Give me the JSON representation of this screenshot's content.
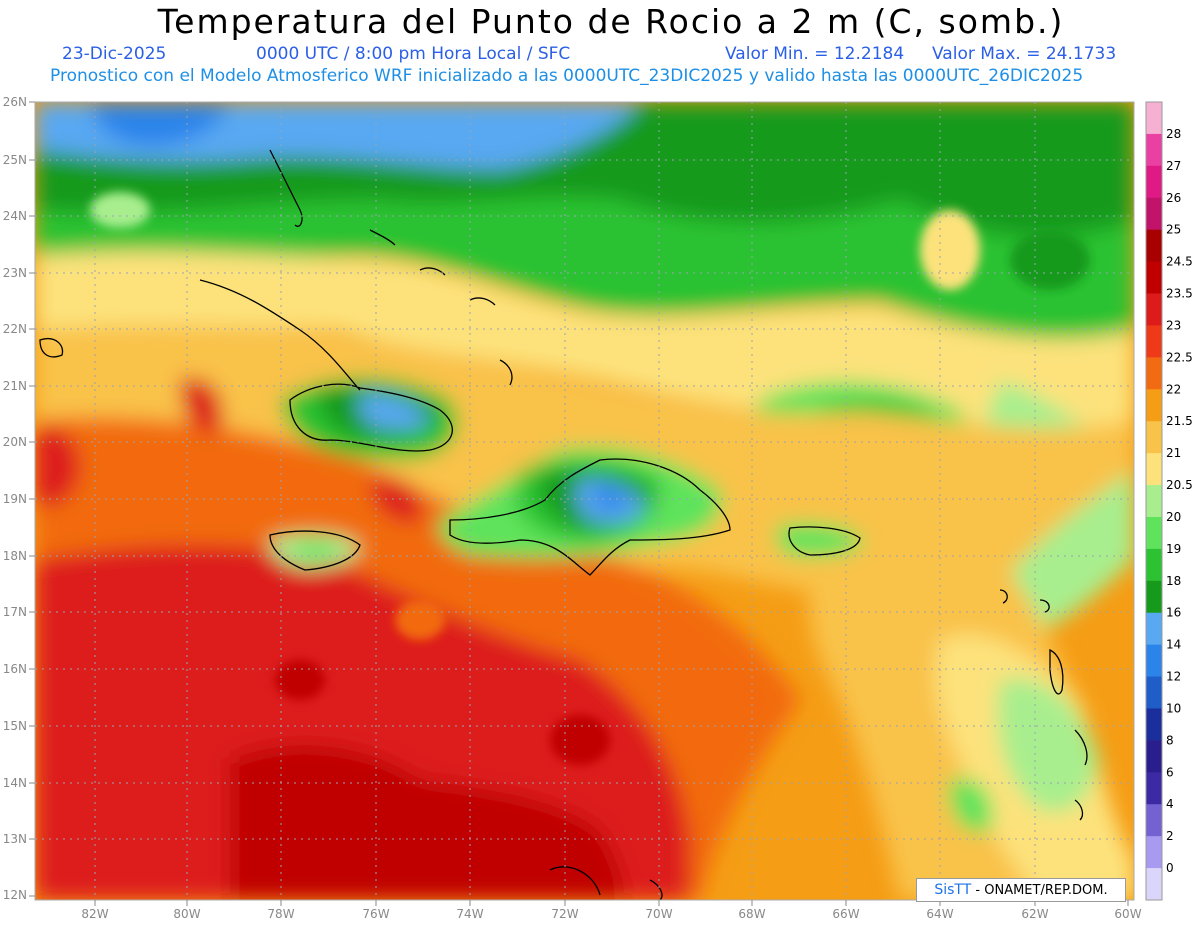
{
  "header": {
    "title": "Temperatura del Punto de Rocio a 2 m (C, somb.)",
    "date": "23-Dic-2025",
    "time": "0000 UTC / 8:00 pm Hora Local / SFC",
    "min": "Valor Min. = 12.2184",
    "max": "Valor Max. = 24.1733",
    "model": "Pronostico con el Modelo Atmosferico WRF inicializado a las 0000UTC_23DIC2025 y valido hasta las 0000UTC_26DIC2025"
  },
  "axes": {
    "lat": [
      "26N",
      "25N",
      "24N",
      "23N",
      "22N",
      "21N",
      "20N",
      "19N",
      "18N",
      "17N",
      "16N",
      "15N",
      "14N",
      "13N",
      "12N"
    ],
    "lon": [
      "82W",
      "80W",
      "78W",
      "76W",
      "74W",
      "72W",
      "70W",
      "68W",
      "66W",
      "64W",
      "62W",
      "60W"
    ]
  },
  "colorbar": {
    "labels": [
      "28",
      "27",
      "26",
      "25",
      "24.5",
      "23.5",
      "23",
      "22.5",
      "22",
      "21.5",
      "21",
      "20.5",
      "20",
      "19",
      "18",
      "16",
      "14",
      "12",
      "10",
      "8",
      "6",
      "4",
      "2",
      "0"
    ],
    "colors": [
      "#f6b0d2",
      "#ea3fa3",
      "#df1a84",
      "#c2136b",
      "#a80000",
      "#c00000",
      "#dd1b1b",
      "#ef3a1a",
      "#f26a11",
      "#f59d15",
      "#f9c249",
      "#fde27b",
      "#a8ee8e",
      "#5fe35c",
      "#2cc232",
      "#159a1b",
      "#58a8f2",
      "#2b84ea",
      "#1f5dc9",
      "#1b2f9c",
      "#2a1d8e",
      "#3c2aa4",
      "#7462d3",
      "#a79af0",
      "#dad5fb"
    ]
  },
  "map_palette": {
    "blue_dark": "#2b84ea",
    "blue": "#58a8f2",
    "green_dark": "#159a1b",
    "green": "#2cc232",
    "green_mid": "#5fe35c",
    "green_light": "#a8ee8e",
    "yellow": "#fde27b",
    "yellow_orange": "#f9c249",
    "orange": "#f59d15",
    "orange_dark": "#f26a11",
    "red": "#dd1b1b",
    "red_dark": "#c00000"
  },
  "credit": {
    "brand": "SisTT",
    "text": "- ONAMET/REP.DOM."
  }
}
